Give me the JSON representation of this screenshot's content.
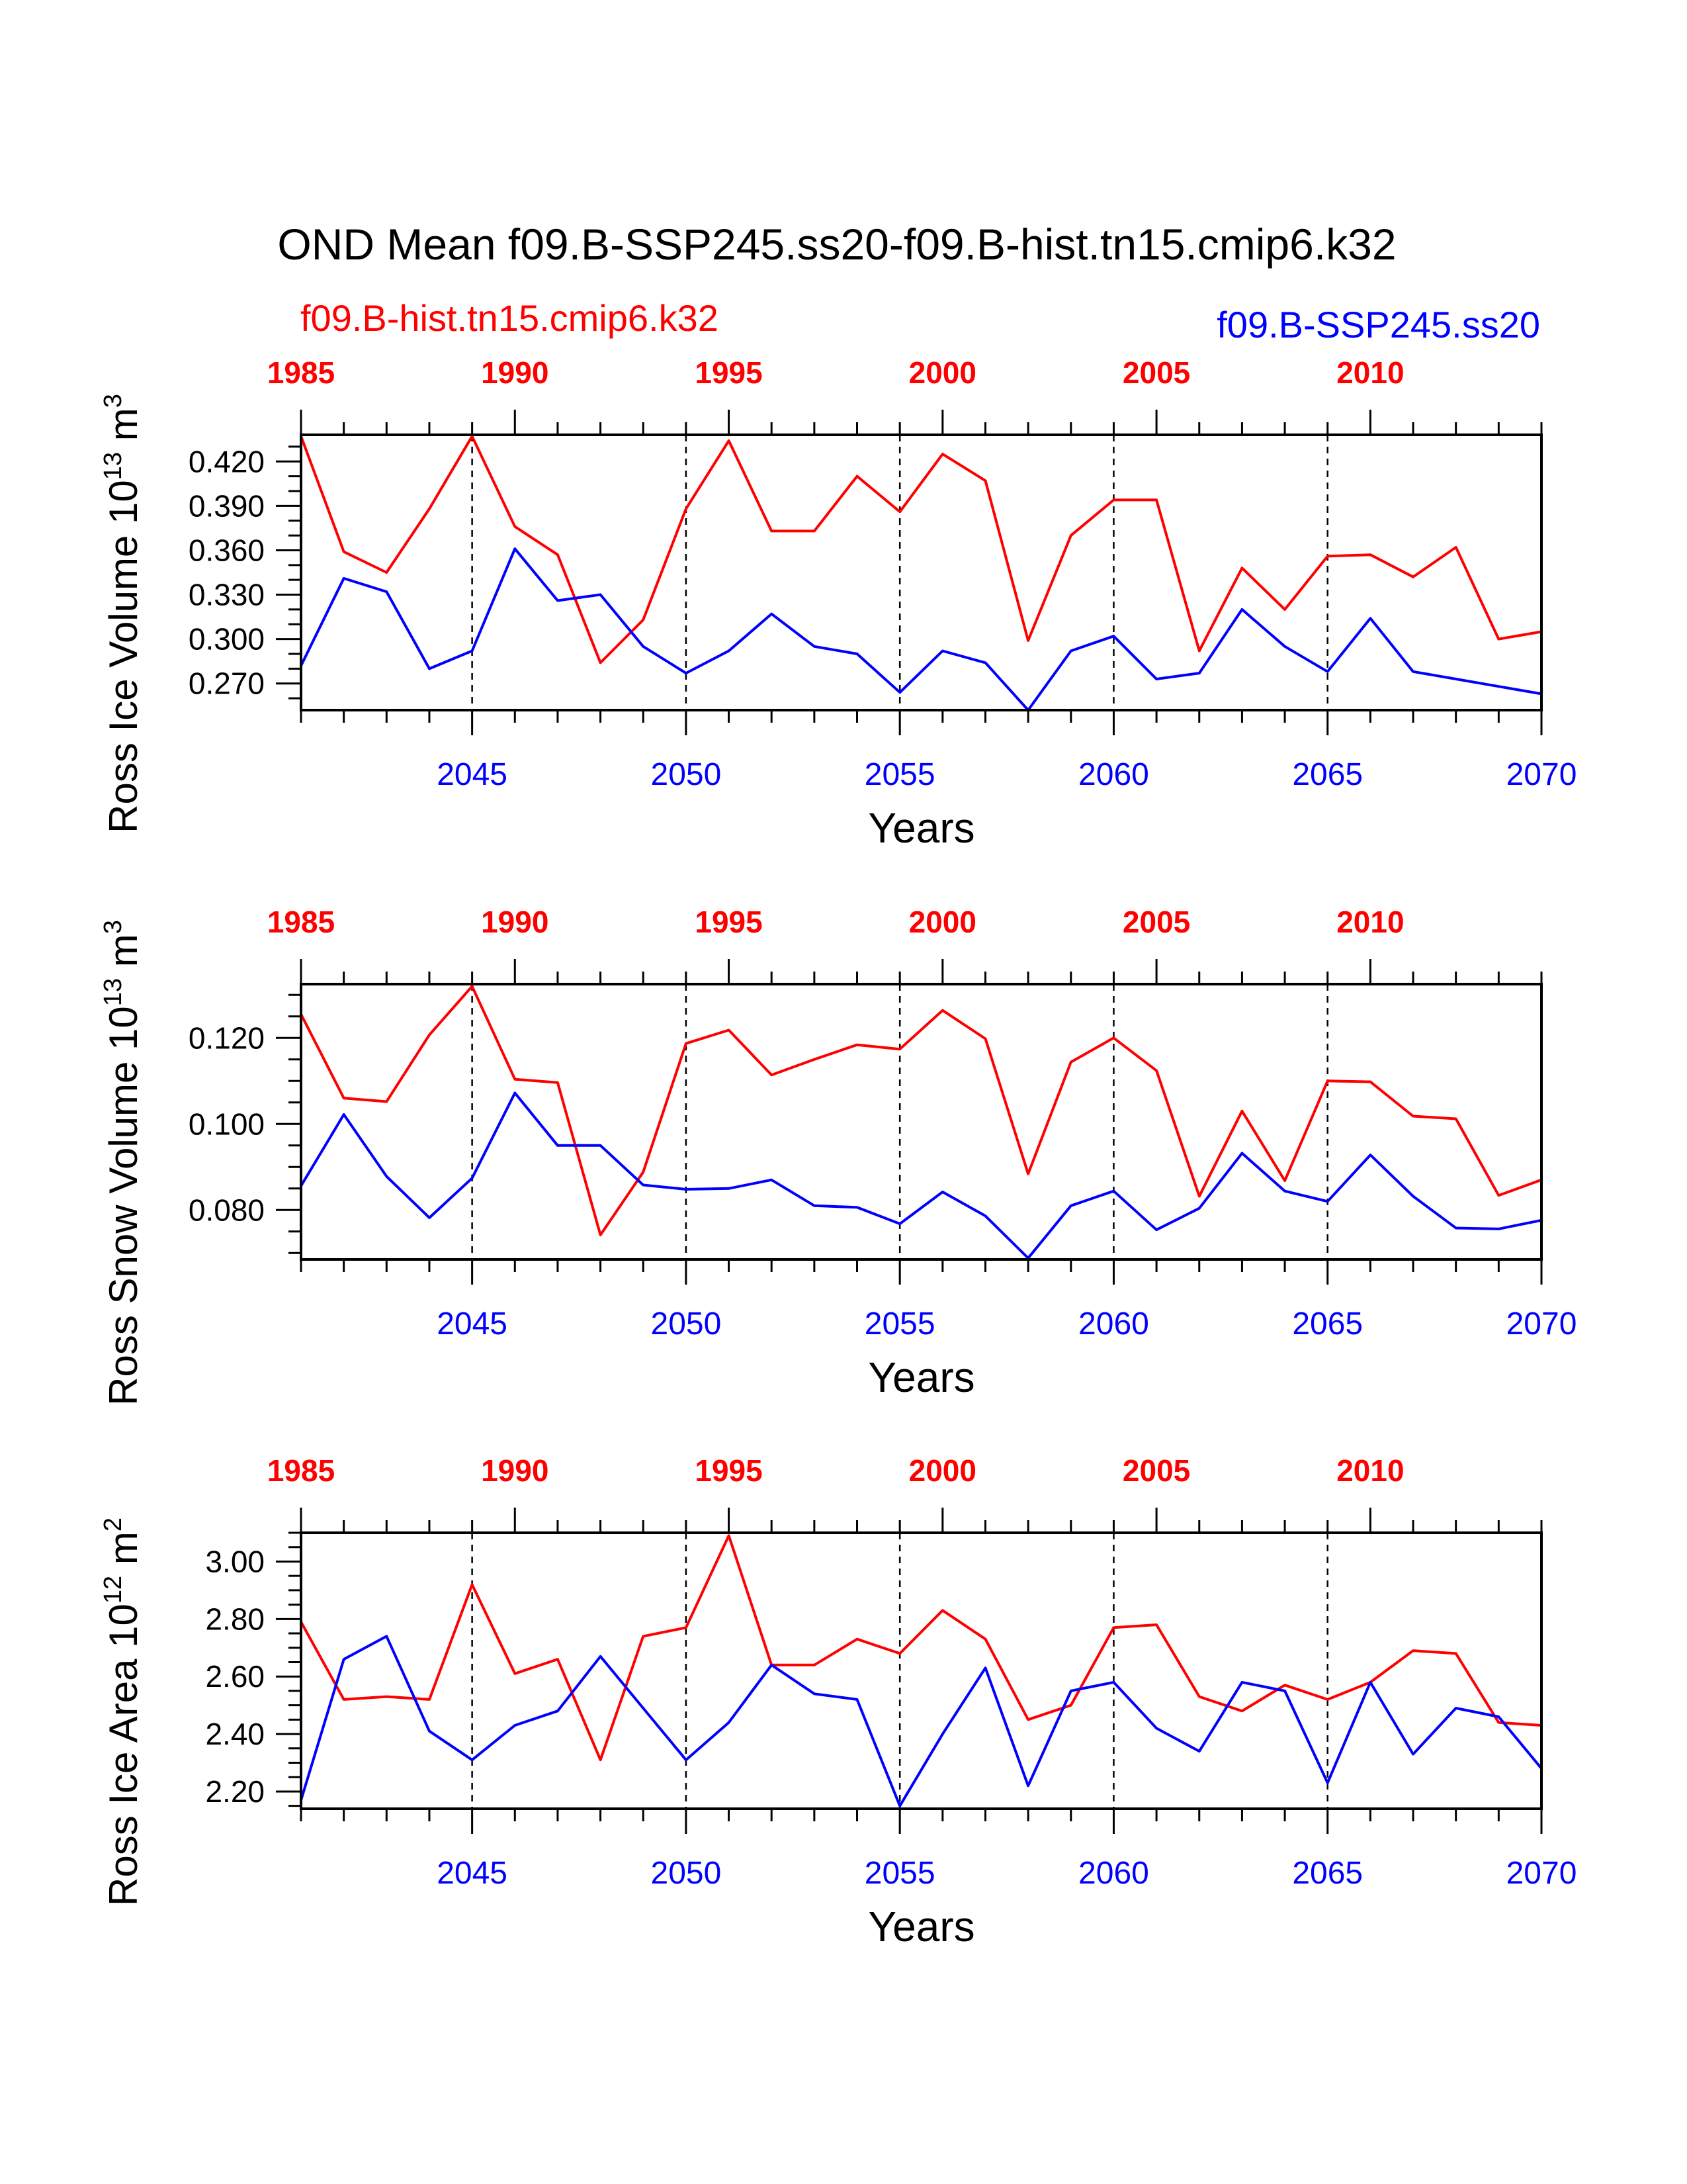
{
  "title": "OND Mean f09.B-SSP245.ss20-f09.B-hist.tn15.cmip6.k32",
  "legend": {
    "red_label": "f09.B-hist.tn15.cmip6.k32",
    "blue_label": "f09.B-SSP245.ss20"
  },
  "colors": {
    "hist": "#ff0000",
    "ssp": "#0000ff",
    "axis": "#000000"
  },
  "chart_data": [
    {
      "type": "line",
      "ylabel_main": "Ross Ice Volume 10",
      "ylabel_exp": "13",
      "ylabel_unit": " m",
      "ylabel_unit_exp": "3",
      "xlabel": "Years",
      "ylim": [
        0.252,
        0.438
      ],
      "yticks": [
        0.27,
        0.3,
        0.33,
        0.36,
        0.39,
        0.42
      ],
      "yticklabels": [
        "0.270",
        "0.300",
        "0.330",
        "0.360",
        "0.390",
        "0.420"
      ],
      "yminor_step": 0.01,
      "xlim": [
        2041,
        2070
      ],
      "bottom_ticks": [
        2045,
        2050,
        2055,
        2060,
        2065,
        2070
      ],
      "bottom_ticklabels": [
        "2045",
        "2050",
        "2055",
        "2060",
        "2065",
        "2070"
      ],
      "top_ticks": [
        1985,
        1990,
        1995,
        2000,
        2005,
        2010
      ],
      "top_ticklabels": [
        "1985",
        "1990",
        "1995",
        "2000",
        "2005",
        "2010"
      ],
      "top_xlim": [
        1985,
        2014
      ],
      "series": [
        {
          "name": "f09.B-hist.tn15.cmip6.k32",
          "color": "#ff0000",
          "x": [
            1985,
            1986,
            1987,
            1988,
            1989,
            1990,
            1991,
            1992,
            1993,
            1994,
            1995,
            1996,
            1997,
            1998,
            1999,
            2000,
            2001,
            2002,
            2003,
            2004,
            2005,
            2006,
            2007,
            2008,
            2009,
            2010,
            2011,
            2012,
            2013,
            2014
          ],
          "values": [
            0.437,
            0.359,
            0.345,
            0.388,
            0.437,
            0.376,
            0.357,
            0.284,
            0.313,
            0.388,
            0.434,
            0.373,
            0.373,
            0.41,
            0.386,
            0.425,
            0.407,
            0.299,
            0.37,
            0.394,
            0.394,
            0.292,
            0.348,
            0.32,
            0.356,
            0.357,
            0.342,
            0.362,
            0.3,
            0.305
          ]
        },
        {
          "name": "f09.B-SSP245.ss20",
          "color": "#0000ff",
          "x": [
            2041,
            2042,
            2043,
            2044,
            2045,
            2046,
            2047,
            2048,
            2049,
            2050,
            2051,
            2052,
            2053,
            2054,
            2055,
            2056,
            2057,
            2058,
            2059,
            2060,
            2061,
            2062,
            2063,
            2064,
            2065,
            2066,
            2067,
            2068,
            2069,
            2070
          ],
          "values": [
            0.282,
            0.341,
            0.332,
            0.28,
            0.292,
            0.361,
            0.326,
            0.33,
            0.295,
            0.277,
            0.292,
            0.317,
            0.295,
            0.29,
            0.264,
            0.292,
            0.284,
            0.252,
            0.292,
            0.302,
            0.273,
            0.277,
            0.32,
            0.295,
            0.278,
            0.314,
            0.278,
            0.273,
            0.268,
            0.263
          ]
        }
      ]
    },
    {
      "type": "line",
      "ylabel_main": "Ross Snow Volume 10",
      "ylabel_exp": "13",
      "ylabel_unit": " m",
      "ylabel_unit_exp": "3",
      "xlabel": "Years",
      "ylim": [
        0.0685,
        0.1325
      ],
      "yticks": [
        0.08,
        0.1,
        0.12
      ],
      "yticklabels": [
        "0.080",
        "0.100",
        "0.120"
      ],
      "yminor_step": 0.005,
      "xlim": [
        2041,
        2070
      ],
      "bottom_ticks": [
        2045,
        2050,
        2055,
        2060,
        2065,
        2070
      ],
      "bottom_ticklabels": [
        "2045",
        "2050",
        "2055",
        "2060",
        "2065",
        "2070"
      ],
      "top_ticks": [
        1985,
        1990,
        1995,
        2000,
        2005,
        2010
      ],
      "top_ticklabels": [
        "1985",
        "1990",
        "1995",
        "2000",
        "2005",
        "2010"
      ],
      "top_xlim": [
        1985,
        2014
      ],
      "series": [
        {
          "name": "f09.B-hist.tn15.cmip6.k32",
          "color": "#ff0000",
          "x": [
            1985,
            1986,
            1987,
            1988,
            1989,
            1990,
            1991,
            1992,
            1993,
            1994,
            1995,
            1996,
            1997,
            1998,
            1999,
            2000,
            2001,
            2002,
            2003,
            2004,
            2005,
            2006,
            2007,
            2008,
            2009,
            2010,
            2011,
            2012,
            2013,
            2014
          ],
          "values": [
            0.1255,
            0.106,
            0.1052,
            0.1207,
            0.132,
            0.1104,
            0.1096,
            0.0742,
            0.0888,
            0.1187,
            0.1218,
            0.1114,
            0.115,
            0.1184,
            0.1174,
            0.1264,
            0.1198,
            0.0884,
            0.1144,
            0.12,
            0.1124,
            0.0832,
            0.103,
            0.0868,
            0.11,
            0.1098,
            0.1018,
            0.1012,
            0.0834,
            0.087
          ]
        },
        {
          "name": "f09.B-SSP245.ss20",
          "color": "#0000ff",
          "x": [
            2041,
            2042,
            2043,
            2044,
            2045,
            2046,
            2047,
            2048,
            2049,
            2050,
            2051,
            2052,
            2053,
            2054,
            2055,
            2056,
            2057,
            2058,
            2059,
            2060,
            2061,
            2062,
            2063,
            2064,
            2065,
            2066,
            2067,
            2068,
            2069,
            2070
          ],
          "values": [
            0.0856,
            0.1022,
            0.0878,
            0.0782,
            0.0874,
            0.1072,
            0.095,
            0.095,
            0.0858,
            0.0848,
            0.085,
            0.087,
            0.081,
            0.0806,
            0.0768,
            0.0842,
            0.0786,
            0.0688,
            0.081,
            0.0844,
            0.0754,
            0.0804,
            0.0932,
            0.0844,
            0.082,
            0.0928,
            0.0832,
            0.0758,
            0.0756,
            0.0776
          ]
        }
      ]
    },
    {
      "type": "line",
      "ylabel_main": "Ross Ice Area 10",
      "ylabel_exp": "12",
      "ylabel_unit": " m",
      "ylabel_unit_exp": "2",
      "xlabel": "Years",
      "ylim": [
        2.14,
        3.1
      ],
      "yticks": [
        2.2,
        2.4,
        2.6,
        2.8,
        3.0
      ],
      "yticklabels": [
        "2.20",
        "2.40",
        "2.60",
        "2.80",
        "3.00"
      ],
      "yminor_step": 0.05,
      "xlim": [
        2041,
        2070
      ],
      "bottom_ticks": [
        2045,
        2050,
        2055,
        2060,
        2065,
        2070
      ],
      "bottom_ticklabels": [
        "2045",
        "2050",
        "2055",
        "2060",
        "2065",
        "2070"
      ],
      "top_ticks": [
        1985,
        1990,
        1995,
        2000,
        2005,
        2010
      ],
      "top_ticklabels": [
        "1985",
        "1990",
        "1995",
        "2000",
        "2005",
        "2010"
      ],
      "top_xlim": [
        1985,
        2014
      ],
      "series": [
        {
          "name": "f09.B-hist.tn15.cmip6.k32",
          "color": "#ff0000",
          "x": [
            1985,
            1986,
            1987,
            1988,
            1989,
            1990,
            1991,
            1992,
            1993,
            1994,
            1995,
            1996,
            1997,
            1998,
            1999,
            2000,
            2001,
            2002,
            2003,
            2004,
            2005,
            2006,
            2007,
            2008,
            2009,
            2010,
            2011,
            2012,
            2013,
            2014
          ],
          "values": [
            2.79,
            2.52,
            2.53,
            2.52,
            2.92,
            2.61,
            2.66,
            2.31,
            2.74,
            2.77,
            3.09,
            2.64,
            2.64,
            2.73,
            2.68,
            2.83,
            2.73,
            2.45,
            2.5,
            2.77,
            2.78,
            2.53,
            2.48,
            2.57,
            2.52,
            2.58,
            2.69,
            2.68,
            2.44,
            2.43
          ]
        },
        {
          "name": "f09.B-SSP245.ss20",
          "color": "#0000ff",
          "x": [
            2041,
            2042,
            2043,
            2044,
            2045,
            2046,
            2047,
            2048,
            2049,
            2050,
            2051,
            2052,
            2053,
            2054,
            2055,
            2056,
            2057,
            2058,
            2059,
            2060,
            2061,
            2062,
            2063,
            2064,
            2065,
            2066,
            2067,
            2068,
            2069,
            2070
          ],
          "values": [
            2.17,
            2.66,
            2.74,
            2.41,
            2.31,
            2.43,
            2.48,
            2.67,
            2.49,
            2.31,
            2.44,
            2.64,
            2.54,
            2.52,
            2.15,
            2.4,
            2.63,
            2.22,
            2.55,
            2.58,
            2.42,
            2.34,
            2.58,
            2.55,
            2.23,
            2.58,
            2.33,
            2.49,
            2.46,
            2.28
          ]
        }
      ]
    }
  ]
}
